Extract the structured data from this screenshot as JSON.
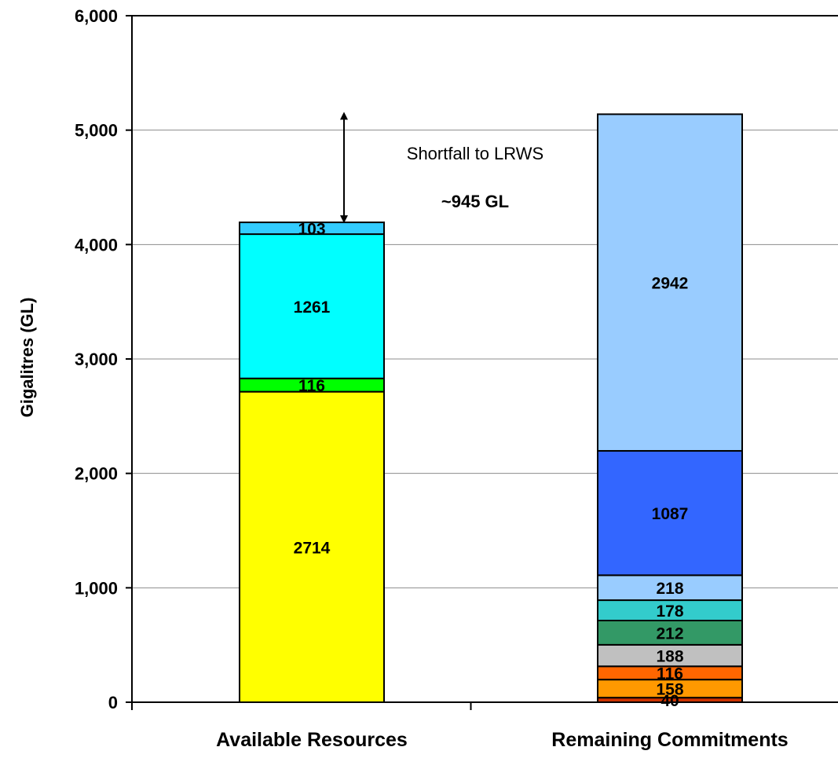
{
  "chart_data": {
    "type": "bar",
    "stacked": true,
    "categories": [
      "Available Resources",
      "Remaining Commitments"
    ],
    "ylabel": "Gigalitres (GL)",
    "ylim": [
      0,
      6000
    ],
    "yticks": [
      "0",
      "1,000",
      "2,000",
      "3,000",
      "4,000",
      "5,000",
      "6,000"
    ],
    "grid": true,
    "bars": [
      {
        "category": "Available Resources",
        "segments": [
          {
            "value": 2714,
            "label": "2714",
            "color": "#ffff00"
          },
          {
            "value": 116,
            "label": "116",
            "color": "#00ff00"
          },
          {
            "value": 1261,
            "label": "1261",
            "color": "#00ffff"
          },
          {
            "value": 103,
            "label": "103",
            "color": "#33ccff"
          }
        ]
      },
      {
        "category": "Remaining Commitments",
        "segments": [
          {
            "value": 40,
            "label": "40",
            "color": "#cc3300"
          },
          {
            "value": 158,
            "label": "158",
            "color": "#ff9900"
          },
          {
            "value": 116,
            "label": "116",
            "color": "#ff6600"
          },
          {
            "value": 188,
            "label": "188",
            "color": "#c0c0c0"
          },
          {
            "value": 212,
            "label": "212",
            "color": "#339966"
          },
          {
            "value": 178,
            "label": "178",
            "color": "#33cccc"
          },
          {
            "value": 218,
            "label": "218",
            "color": "#99ccff"
          },
          {
            "value": 1087,
            "label": "1087",
            "color": "#3366ff"
          },
          {
            "value": 2942,
            "label": "2942",
            "color": "#99ccff"
          }
        ]
      }
    ],
    "annotation": {
      "text": "Shortfall to LRWS",
      "value_text": "~945 GL",
      "from_value": 4194,
      "to_value": 5139
    }
  }
}
